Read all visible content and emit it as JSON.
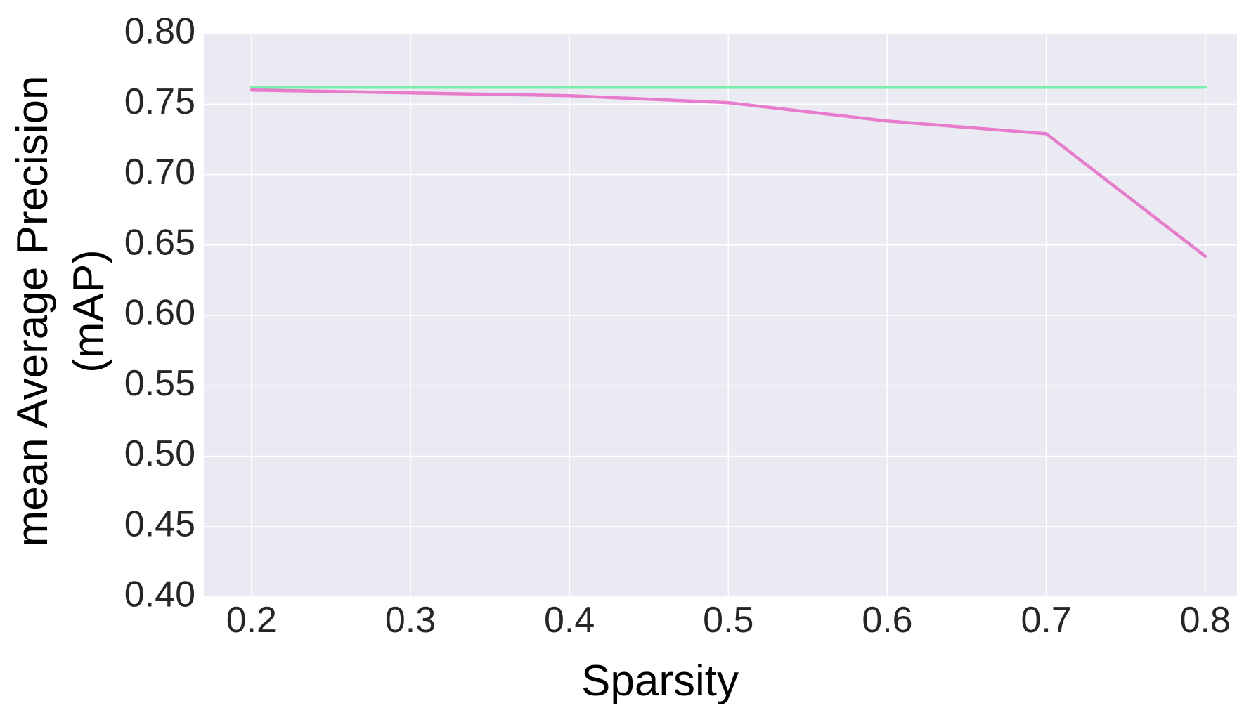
{
  "chart_data": {
    "type": "line",
    "title": "",
    "xlabel": "Sparsity",
    "ylabel": "mean Average Precision (mAP)",
    "ylabel_lines": [
      "mean Average Precision",
      "(mAP)"
    ],
    "x": [
      0.2,
      0.3,
      0.4,
      0.5,
      0.6,
      0.7,
      0.8
    ],
    "xlim": [
      0.17,
      0.82
    ],
    "ylim": [
      0.4,
      0.8
    ],
    "xticks": [
      0.2,
      0.3,
      0.4,
      0.5,
      0.6,
      0.7,
      0.8
    ],
    "xtick_labels": [
      "0.2",
      "0.3",
      "0.4",
      "0.5",
      "0.6",
      "0.7",
      "0.8"
    ],
    "yticks": [
      0.4,
      0.45,
      0.5,
      0.55,
      0.6,
      0.65,
      0.7,
      0.75,
      0.8
    ],
    "ytick_labels": [
      "0.40",
      "0.45",
      "0.50",
      "0.55",
      "0.60",
      "0.65",
      "0.70",
      "0.75",
      "0.80"
    ],
    "grid": true,
    "legend": false,
    "plot_background": "#eaeaf2",
    "series": [
      {
        "color": "#78f0a8",
        "values": [
          0.762,
          0.762,
          0.762,
          0.762,
          0.762,
          0.762,
          0.762
        ]
      },
      {
        "color": "#e87ccc",
        "values": [
          0.76,
          0.758,
          0.756,
          0.751,
          0.738,
          0.729,
          0.642
        ]
      }
    ]
  }
}
